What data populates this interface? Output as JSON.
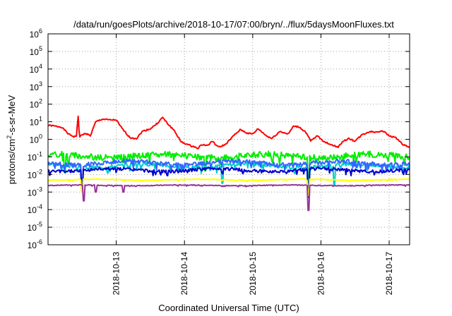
{
  "chart_data": {
    "type": "line",
    "title": "/data/run/goesPlots/archive/2018-10-17/07:00/bryn/../flux/5daysMoonFluxes.txt",
    "xlabel": "Coordinated Universal Time (UTC)",
    "ylabel": "protons/cm2-s-sr-MeV",
    "ylabel_parts": {
      "pre": "protons/cm",
      "sup": "2",
      "post": "-s-sr-MeV"
    },
    "yscale": "log",
    "ylim": [
      -6,
      6
    ],
    "y_ticks": [
      {
        "exp": -6,
        "base": "10",
        "sup": "-6"
      },
      {
        "exp": -5,
        "base": "10",
        "sup": "-5"
      },
      {
        "exp": -4,
        "base": "10",
        "sup": "-4"
      },
      {
        "exp": -3,
        "base": "10",
        "sup": "-3"
      },
      {
        "exp": -2,
        "base": "10",
        "sup": "-2"
      },
      {
        "exp": -1,
        "base": "10",
        "sup": "-1"
      },
      {
        "exp": 0,
        "base": "10",
        "sup": "0"
      },
      {
        "exp": 1,
        "base": "10",
        "sup": "1"
      },
      {
        "exp": 2,
        "base": "10",
        "sup": "2"
      },
      {
        "exp": 3,
        "base": "10",
        "sup": "3"
      },
      {
        "exp": 4,
        "base": "10",
        "sup": "4"
      },
      {
        "exp": 5,
        "base": "10",
        "sup": "5"
      },
      {
        "exp": 6,
        "base": "10",
        "sup": "6"
      }
    ],
    "xlim": [
      0,
      5.3
    ],
    "x_ticks": [
      {
        "label": "2018-10-13",
        "day": 1
      },
      {
        "label": "2018-10-14",
        "day": 2
      },
      {
        "label": "2018-10-15",
        "day": 3
      },
      {
        "label": "2018-10-16",
        "day": 4
      },
      {
        "label": "2018-10-17",
        "day": 5
      }
    ],
    "grid": true,
    "series": [
      {
        "color": "#ff0000",
        "style": "smooth",
        "seed": 1,
        "noise": 0.08,
        "points": [
          [
            0,
            0.8
          ],
          [
            0.2,
            0.7
          ],
          [
            0.3,
            0.3
          ],
          [
            0.38,
            0.15
          ],
          [
            0.42,
            0.2
          ],
          [
            0.44,
            1.4
          ],
          [
            0.46,
            0.15
          ],
          [
            0.55,
            0.35
          ],
          [
            0.62,
            0.2
          ],
          [
            0.7,
            1.0
          ],
          [
            0.8,
            1.15
          ],
          [
            0.9,
            1.1
          ],
          [
            1.0,
            1.1
          ],
          [
            1.05,
            0.8
          ],
          [
            1.12,
            0.45
          ],
          [
            1.2,
            0.1
          ],
          [
            1.3,
            0.05
          ],
          [
            1.38,
            0.45
          ],
          [
            1.5,
            0.6
          ],
          [
            1.6,
            0.9
          ],
          [
            1.68,
            1.25
          ],
          [
            1.75,
            0.9
          ],
          [
            1.85,
            0.5
          ],
          [
            1.95,
            -0.15
          ],
          [
            2.08,
            -0.35
          ],
          [
            2.2,
            -0.5
          ],
          [
            2.25,
            -0.3
          ],
          [
            2.35,
            -0.35
          ],
          [
            2.4,
            -0.1
          ],
          [
            2.5,
            -0.45
          ],
          [
            2.6,
            -0.3
          ],
          [
            2.72,
            0.2
          ],
          [
            2.82,
            0.55
          ],
          [
            2.92,
            0.35
          ],
          [
            3.0,
            0.3
          ],
          [
            3.08,
            0.6
          ],
          [
            3.2,
            0.2
          ],
          [
            3.28,
            0.05
          ],
          [
            3.4,
            0.45
          ],
          [
            3.52,
            0.3
          ],
          [
            3.6,
            0.75
          ],
          [
            3.68,
            0.7
          ],
          [
            3.78,
            0.4
          ],
          [
            3.85,
            -0.1
          ],
          [
            3.95,
            0.2
          ],
          [
            4.05,
            -0.15
          ],
          [
            4.15,
            -0.3
          ],
          [
            4.25,
            -0.45
          ],
          [
            4.3,
            -0.2
          ],
          [
            4.4,
            0.05
          ],
          [
            4.5,
            -0.1
          ],
          [
            4.6,
            0.25
          ],
          [
            4.72,
            0.45
          ],
          [
            4.8,
            0.4
          ],
          [
            4.9,
            0.5
          ],
          [
            5.0,
            0.2
          ],
          [
            5.1,
            0.1
          ],
          [
            5.2,
            -0.3
          ],
          [
            5.3,
            -0.45
          ]
        ]
      },
      {
        "color": "#00ee00",
        "style": "jagged",
        "seed": 2,
        "base": -0.95,
        "wave": 0.1,
        "noise": 0.35,
        "dips": [
          [
            0.25,
            -1.9
          ],
          [
            2.3,
            -1.8
          ],
          [
            3.82,
            -2.5
          ]
        ]
      },
      {
        "color": "#00cccc",
        "style": "jagged",
        "seed": 3,
        "base": -1.5,
        "wave": 0.1,
        "noise": 0.22,
        "dips": [
          [
            0.5,
            -2.8
          ],
          [
            2.55,
            -2.5
          ],
          [
            3.82,
            -3.2
          ],
          [
            4.2,
            -2.6
          ]
        ]
      },
      {
        "color": "#3366ff",
        "style": "jagged",
        "seed": 4,
        "base": -1.35,
        "wave": 0.1,
        "noise": 0.25,
        "dips": [
          [
            0.5,
            -2.6
          ],
          [
            3.82,
            -3.0
          ]
        ]
      },
      {
        "color": "#0000cc",
        "style": "jagged",
        "seed": 5,
        "base": -1.75,
        "wave": 0.08,
        "noise": 0.18,
        "dips": [
          [
            0.5,
            -2.9
          ],
          [
            3.82,
            -3.3
          ]
        ]
      },
      {
        "color": "#ffff00",
        "style": "jagged",
        "seed": 6,
        "base": -2.3,
        "wave": 0.03,
        "noise": 0.05,
        "dips": [
          [
            0.5,
            -3.0
          ],
          [
            3.82,
            -3.2
          ]
        ]
      },
      {
        "color": "#993399",
        "style": "jagged",
        "seed": 7,
        "base": -2.62,
        "wave": 0.02,
        "noise": 0.04,
        "dips": [
          [
            0.52,
            -3.5
          ],
          [
            0.7,
            -3.0
          ],
          [
            1.1,
            -3.0
          ],
          [
            3.82,
            -4.05
          ]
        ]
      }
    ]
  }
}
